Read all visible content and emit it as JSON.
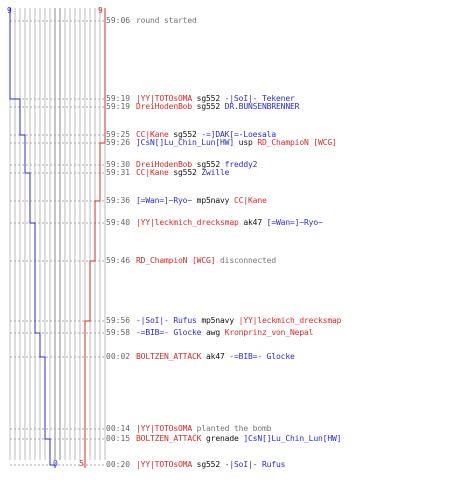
{
  "colors": {
    "team_a": "#2b2bd4",
    "team_b": "#d42b2b",
    "grid": "#bbbbbb",
    "center": "#888888"
  },
  "counts": {
    "team_a_start": "9",
    "team_b_start": "9",
    "team_a_end": "0",
    "team_b_end": "5"
  },
  "events": [
    {
      "time": "59:06",
      "parts": [
        {
          "text": "round started",
          "cls": "gray"
        }
      ]
    },
    {
      "time": "59:19",
      "parts": [
        {
          "text": "|YY|TOTOsOMA",
          "cls": "ct"
        },
        {
          "text": " sg552 ",
          "cls": "wpn"
        },
        {
          "text": "-|SoI|- Tekener",
          "cls": "t"
        }
      ]
    },
    {
      "time": "59:19",
      "parts": [
        {
          "text": "DreiHodenBob",
          "cls": "ct"
        },
        {
          "text": " sg552 ",
          "cls": "wpn"
        },
        {
          "text": "DR.BUNSENBRENNER",
          "cls": "t"
        }
      ]
    },
    {
      "time": "59:25",
      "parts": [
        {
          "text": "CC|Kane",
          "cls": "ct"
        },
        {
          "text": " sg552 ",
          "cls": "wpn"
        },
        {
          "text": "-=]DAK[=-Loesala",
          "cls": "t"
        }
      ]
    },
    {
      "time": "59:26",
      "parts": [
        {
          "text": "]CsN[]Lu_Chin_Lun[HW]",
          "cls": "t"
        },
        {
          "text": " usp ",
          "cls": "wpn"
        },
        {
          "text": "RD_ChampioN [WCG]",
          "cls": "ct"
        }
      ]
    },
    {
      "time": "59:30",
      "parts": [
        {
          "text": "DreiHodenBob",
          "cls": "ct"
        },
        {
          "text": " sg552 ",
          "cls": "wpn"
        },
        {
          "text": "freddy2",
          "cls": "t"
        }
      ]
    },
    {
      "time": "59:31",
      "parts": [
        {
          "text": "CC|Kane",
          "cls": "ct"
        },
        {
          "text": " sg552 ",
          "cls": "wpn"
        },
        {
          "text": "Zwille",
          "cls": "t"
        }
      ]
    },
    {
      "time": "59:36",
      "parts": [
        {
          "text": "[=Wan=]~Ryo~",
          "cls": "t"
        },
        {
          "text": " mp5navy ",
          "cls": "wpn"
        },
        {
          "text": "CC|Kane",
          "cls": "ct"
        }
      ]
    },
    {
      "time": "59:40",
      "parts": [
        {
          "text": "|YY|leckmich_drecksmap",
          "cls": "ct"
        },
        {
          "text": " ak47 ",
          "cls": "wpn"
        },
        {
          "text": "[=Wan=]~Ryo~",
          "cls": "t"
        }
      ]
    },
    {
      "time": "59:46",
      "parts": [
        {
          "text": "RD_ChampioN [WCG]",
          "cls": "ct"
        },
        {
          "text": " disconnected",
          "cls": "gray"
        }
      ]
    },
    {
      "time": "59:56",
      "parts": [
        {
          "text": "-|SoI|- Rufus",
          "cls": "t"
        },
        {
          "text": " mp5navy ",
          "cls": "wpn"
        },
        {
          "text": "|YY|leckmich_drecksmap",
          "cls": "ct"
        }
      ]
    },
    {
      "time": "59:58",
      "parts": [
        {
          "text": "-=BIB=- Glocke",
          "cls": "t"
        },
        {
          "text": " awg ",
          "cls": "wpn"
        },
        {
          "text": "Kronprinz_von_Nepal",
          "cls": "ct"
        }
      ]
    },
    {
      "time": "00:02",
      "parts": [
        {
          "text": "BOLTZEN_ATTACK",
          "cls": "ct"
        },
        {
          "text": " ak47 ",
          "cls": "wpn"
        },
        {
          "text": "-=BIB=- Glocke",
          "cls": "t"
        }
      ]
    },
    {
      "time": "00:14",
      "parts": [
        {
          "text": "|YY|TOTOsOMA",
          "cls": "ct"
        },
        {
          "text": " planted the bomb",
          "cls": "gray"
        }
      ]
    },
    {
      "time": "00:15",
      "parts": [
        {
          "text": "BOLTZEN_ATTACK",
          "cls": "ct"
        },
        {
          "text": " grenade ",
          "cls": "wpn"
        },
        {
          "text": "]CsN[]Lu_Chin_Lun[HW]",
          "cls": "t"
        }
      ]
    },
    {
      "time": "00:20",
      "parts": [
        {
          "text": "|YY|TOTOsOMA",
          "cls": "ct"
        },
        {
          "text": " sg552 ",
          "cls": "wpn"
        },
        {
          "text": "-|SoI|- Rufus",
          "cls": "t"
        }
      ]
    }
  ]
}
